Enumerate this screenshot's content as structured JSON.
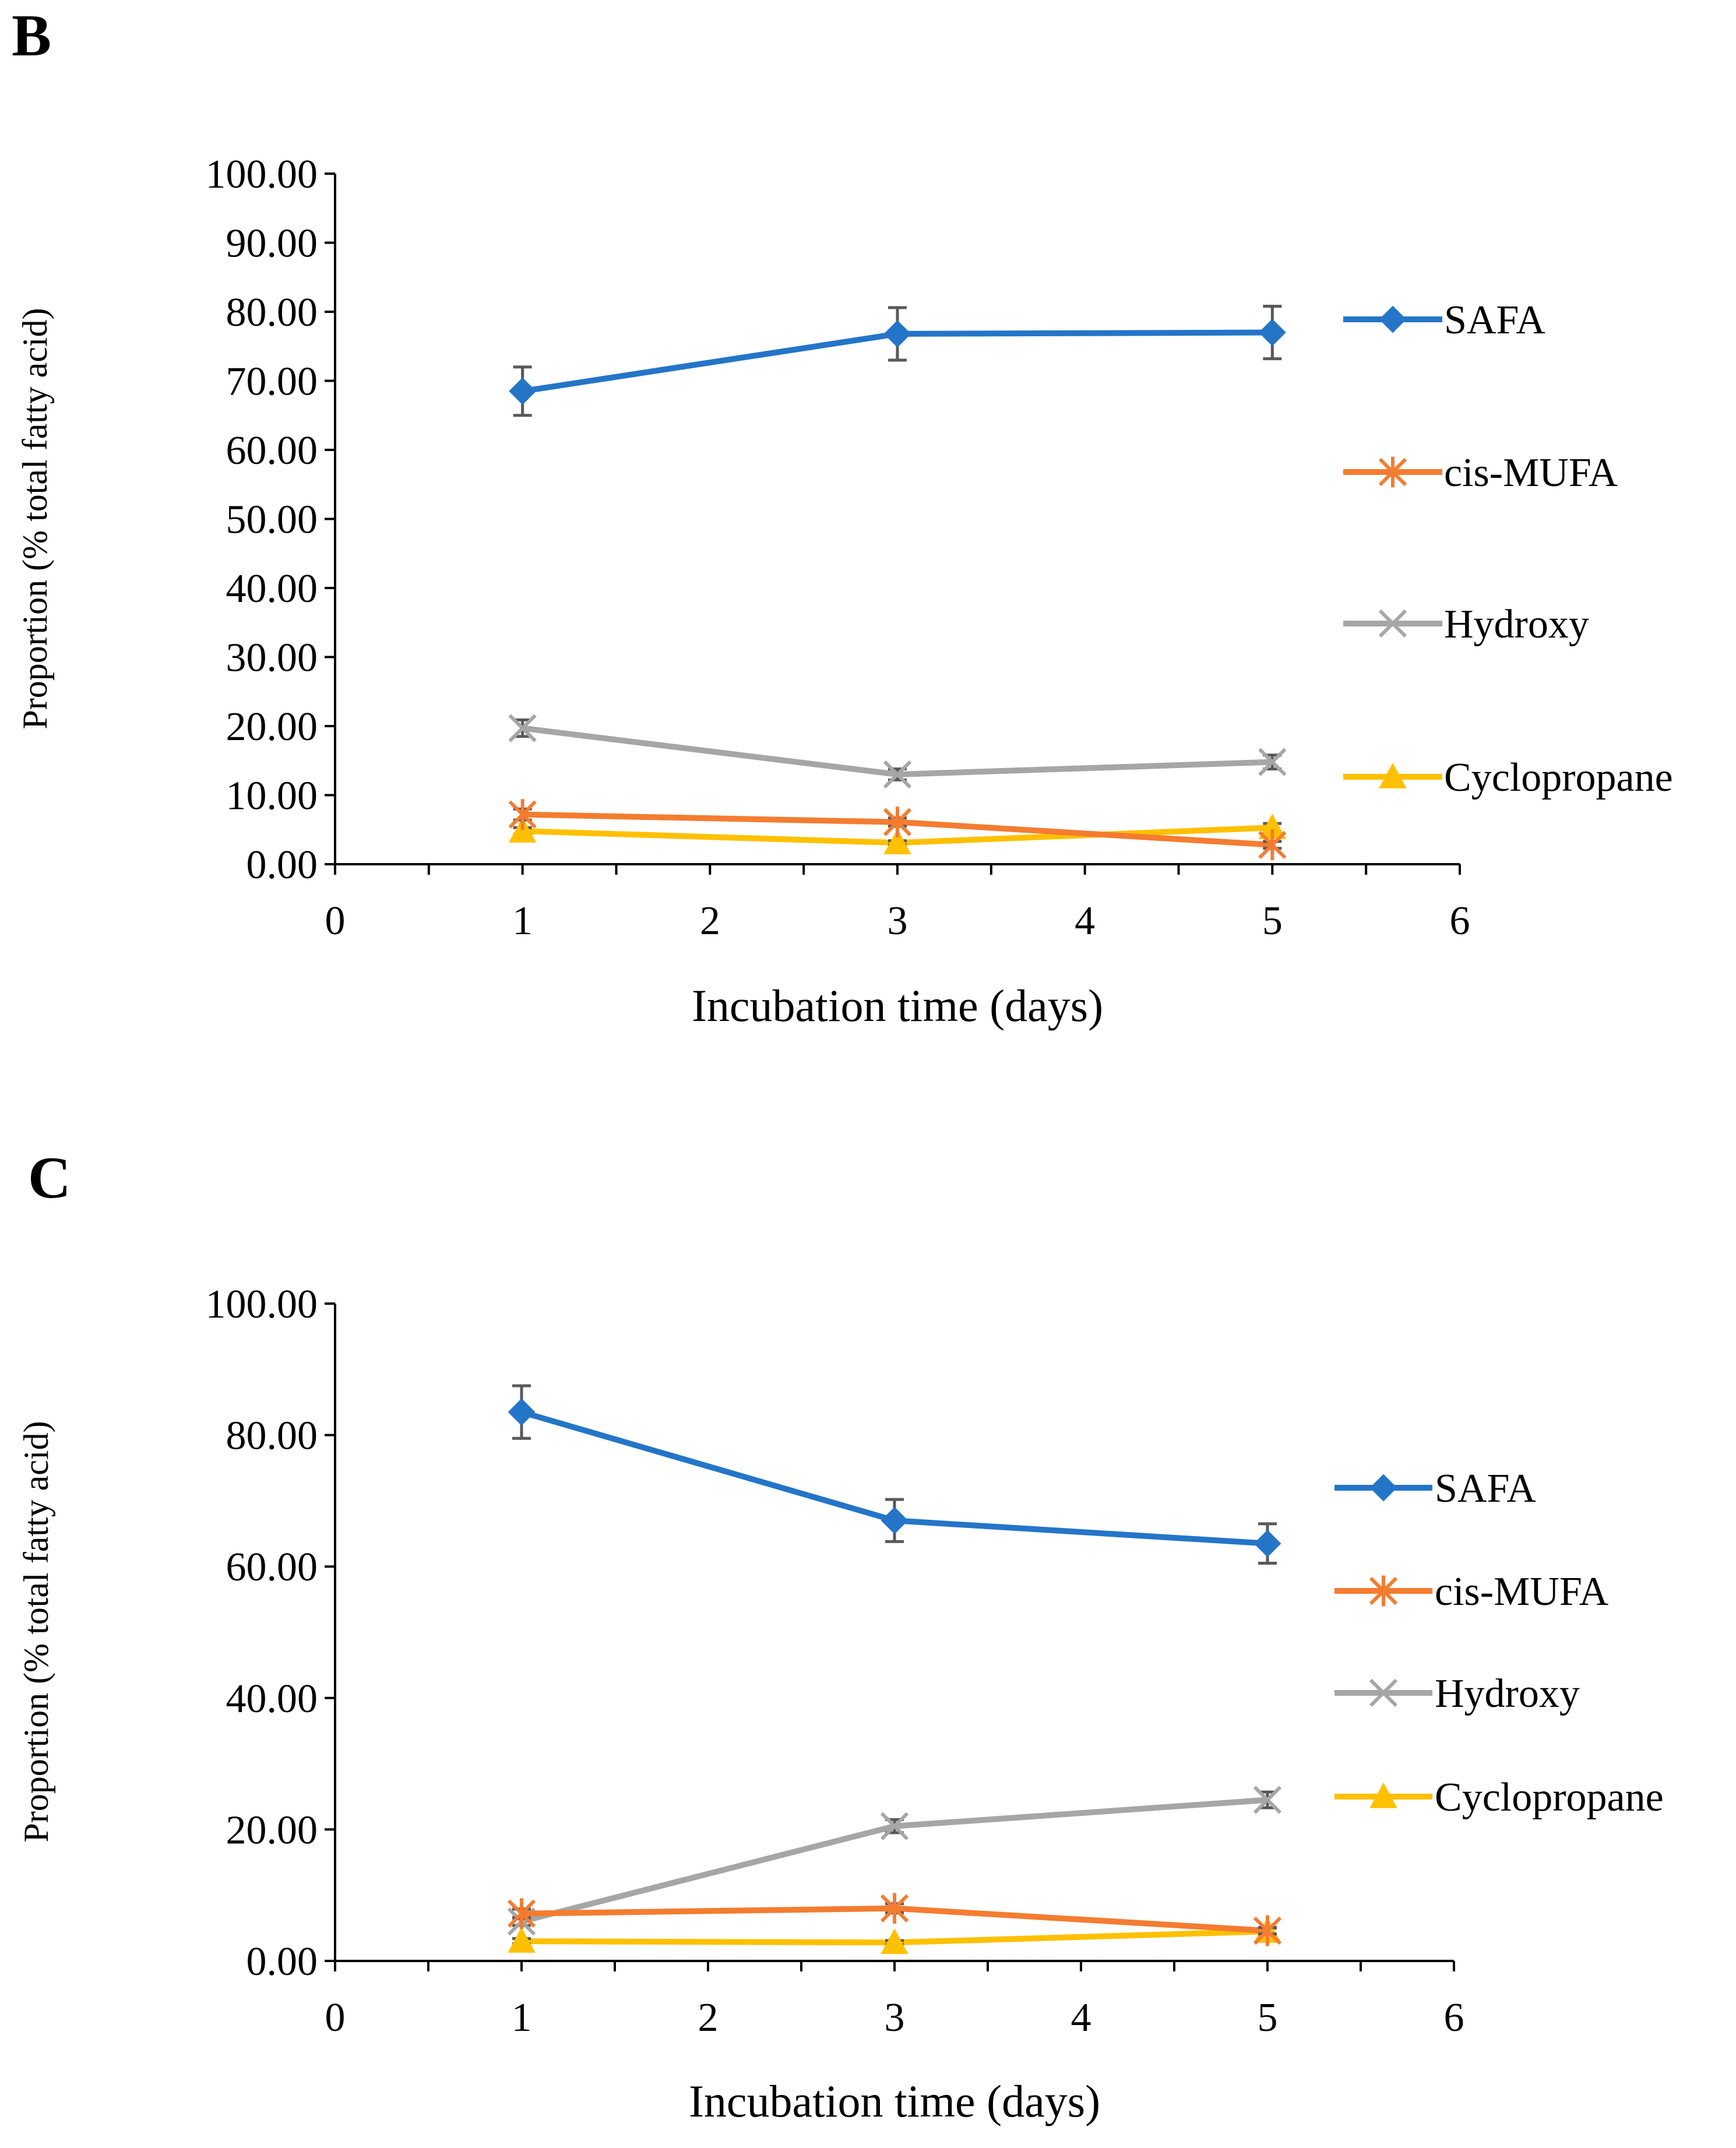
{
  "chart_data": [
    {
      "panel_label": "B",
      "type": "line",
      "x": [
        1,
        3,
        5
      ],
      "series": [
        {
          "name": "SAFA",
          "values": [
            68.5,
            76.8,
            77.0
          ],
          "errors": [
            3.5,
            3.8,
            3.8
          ],
          "color": "#2475C8",
          "marker": "diamond"
        },
        {
          "name": "cis-MUFA",
          "values": [
            7.2,
            6.1,
            2.8
          ],
          "errors": [
            0.8,
            0.6,
            0.5
          ],
          "color": "#F47C30",
          "marker": "asterisk"
        },
        {
          "name": "Hydroxy",
          "values": [
            19.7,
            13.0,
            14.8
          ],
          "errors": [
            1.2,
            0.8,
            1.0
          ],
          "color": "#A6A6A6",
          "marker": "x"
        },
        {
          "name": "Cyclopropane",
          "values": [
            4.8,
            3.1,
            5.3
          ],
          "errors": [
            0.5,
            0.3,
            0.6
          ],
          "color": "#FFC000",
          "marker": "triangle"
        }
      ],
      "xlabel": "Incubation time (days)",
      "ylabel": "Proportion (% total fatty acid)",
      "xlim": [
        0,
        6
      ],
      "ylim": [
        0,
        100
      ],
      "x_ticks": [
        "0",
        "1",
        "2",
        "3",
        "4",
        "5",
        "6"
      ],
      "y_ticks": [
        "0.00",
        "10.00",
        "20.00",
        "30.00",
        "40.00",
        "50.00",
        "60.00",
        "70.00",
        "80.00",
        "90.00",
        "100.00"
      ],
      "legend_position": "right"
    },
    {
      "panel_label": "C",
      "type": "line",
      "x": [
        1,
        3,
        5
      ],
      "series": [
        {
          "name": "SAFA",
          "values": [
            83.5,
            67.0,
            63.5
          ],
          "errors": [
            4.0,
            3.2,
            3.0
          ],
          "color": "#2475C8",
          "marker": "diamond"
        },
        {
          "name": "cis-MUFA",
          "values": [
            7.2,
            8.0,
            4.6
          ],
          "errors": [
            0.7,
            0.7,
            0.5
          ],
          "color": "#F47C30",
          "marker": "asterisk"
        },
        {
          "name": "Hydroxy",
          "values": [
            6.0,
            20.5,
            24.5
          ],
          "errors": [
            0.6,
            1.0,
            1.2
          ],
          "color": "#A6A6A6",
          "marker": "x"
        },
        {
          "name": "Cyclopropane",
          "values": [
            3.0,
            2.8,
            4.5
          ],
          "errors": [
            0.4,
            0.3,
            0.5
          ],
          "color": "#FFC000",
          "marker": "triangle"
        }
      ],
      "xlabel": "Incubation time (days)",
      "ylabel": "Proportion (% total fatty acid)",
      "xlim": [
        0,
        6
      ],
      "ylim": [
        0,
        100
      ],
      "x_ticks": [
        "0",
        "1",
        "2",
        "3",
        "4",
        "5",
        "6"
      ],
      "y_ticks": [
        "0.00",
        "20.00",
        "40.00",
        "60.00",
        "80.00",
        "100.00"
      ],
      "legend_position": "right"
    }
  ]
}
